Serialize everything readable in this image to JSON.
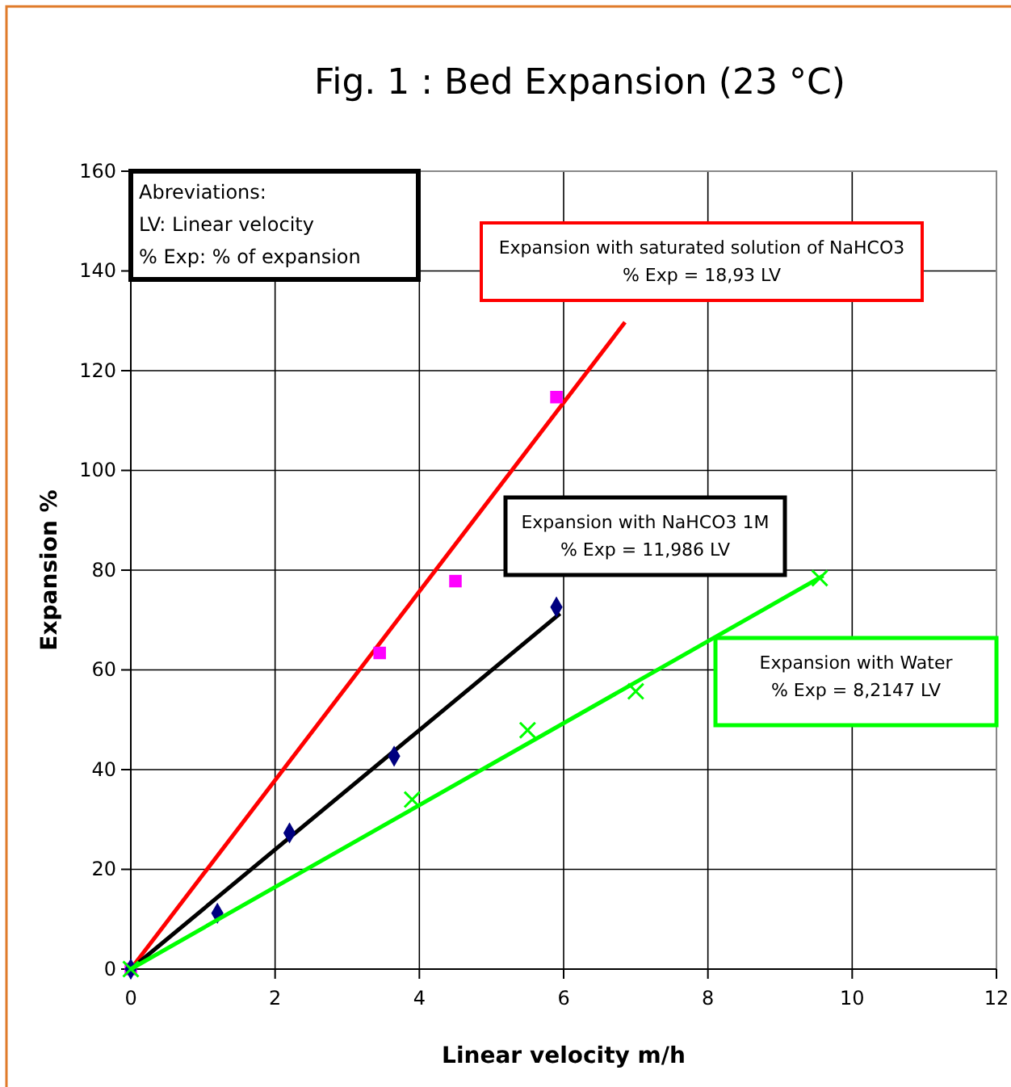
{
  "chart_data": {
    "type": "scatter",
    "title": "Fig. 1 : Bed Expansion (23 °C)",
    "xlabel": "Linear velocity m/h",
    "ylabel": "Expansion %",
    "xlim": [
      0,
      12
    ],
    "xticks": [
      0,
      2,
      4,
      6,
      8,
      10,
      12
    ],
    "ylim": [
      0,
      160
    ],
    "yticks": [
      0,
      20,
      40,
      60,
      80,
      100,
      120,
      140,
      160
    ],
    "grid": true,
    "annotations": [
      "Abreviations:\nLV: Linear velocity\n% Exp: % of expansion",
      "Expansion with saturated solution of NaHCO3\n% Exp = 18,93 LV",
      "Expansion with NaHCO3 1M\n% Exp = 11,986 LV",
      "Expansion with Water\n% Exp = 8,2147 LV"
    ],
    "series": [
      {
        "type": "line",
        "color": "#ff0000",
        "x": [
          0,
          6.85
        ],
        "values": [
          0,
          129.7
        ],
        "marker": "none",
        "line_style": "solid"
      },
      {
        "color": "#ff00ff",
        "x": [
          0,
          3.45,
          4.5,
          5.9
        ],
        "values": [
          0,
          63.4,
          77.8,
          114.7
        ],
        "marker": "square"
      },
      {
        "type": "line",
        "color": "#000000",
        "x": [
          0,
          5.95
        ],
        "values": [
          0,
          71.3
        ],
        "marker": "none",
        "line_style": "solid"
      },
      {
        "color": "#000080",
        "x": [
          0,
          1.2,
          2.2,
          3.65,
          5.9
        ],
        "values": [
          0,
          11.2,
          27.3,
          42.7,
          72.6
        ],
        "marker": "diamond"
      },
      {
        "type": "line",
        "color": "#00ff00",
        "x": [
          0,
          9.6
        ],
        "values": [
          0,
          78.9
        ],
        "marker": "none",
        "line_style": "solid"
      },
      {
        "color": "#00ff00",
        "x": [
          0,
          3.9,
          5.5,
          7.0,
          9.55
        ],
        "values": [
          0,
          34,
          47.9,
          55.7,
          78.4
        ],
        "marker": "cross"
      }
    ]
  }
}
